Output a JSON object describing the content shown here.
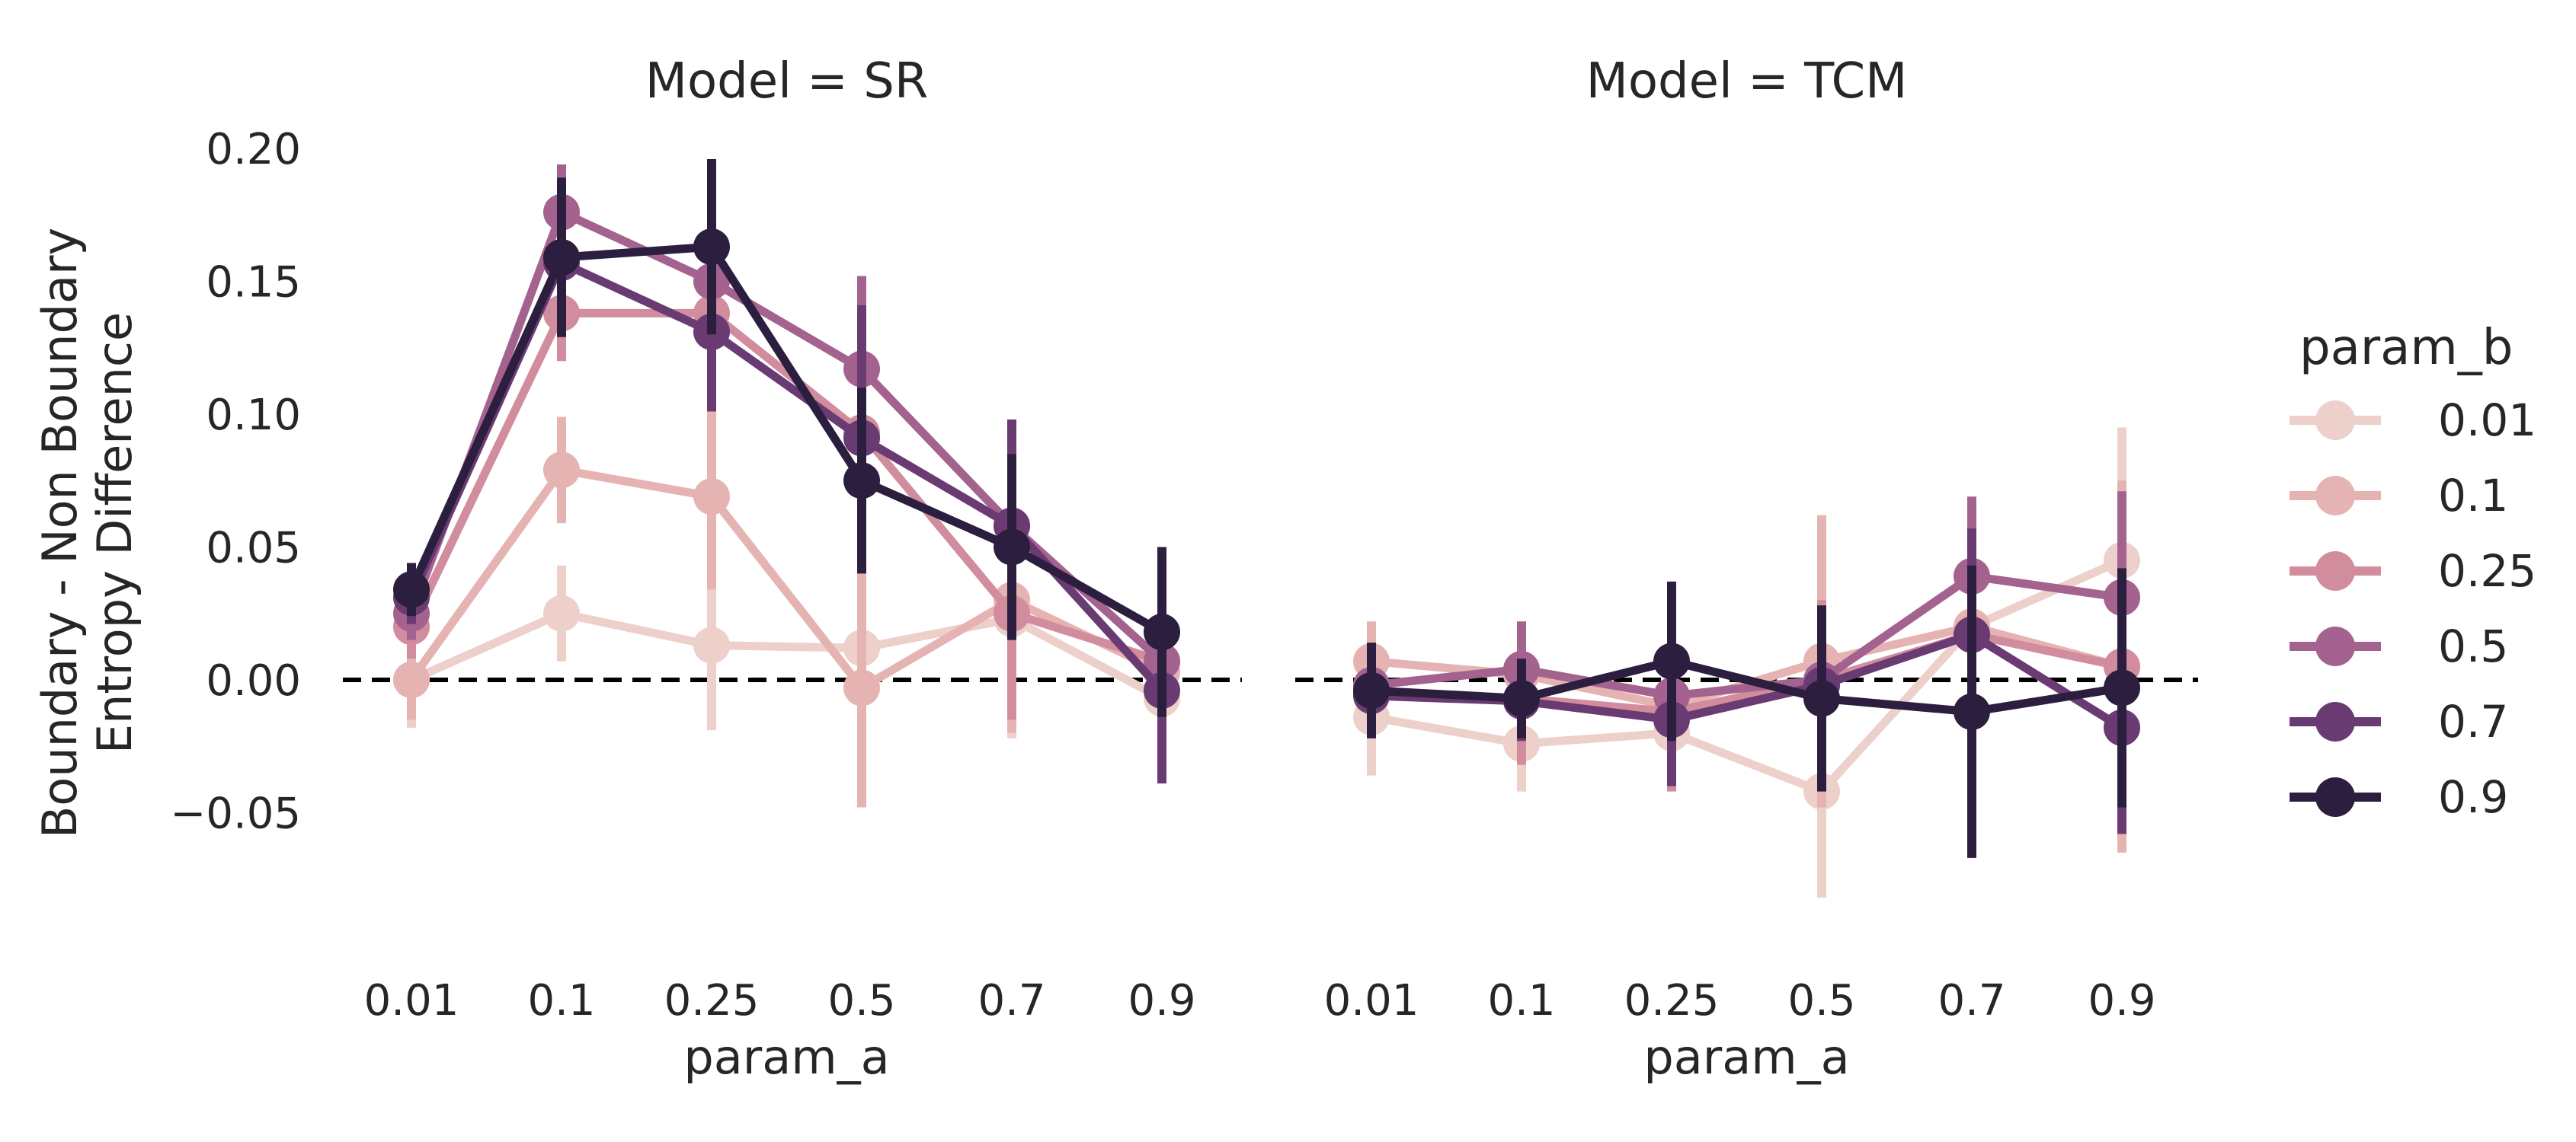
{
  "chart_data": {
    "type": "line",
    "ylabel_lines": [
      "Boundary - Non Boundary",
      "Entropy Difference"
    ],
    "xlabel": "param_a",
    "ylim": [
      -0.1,
      0.21
    ],
    "yticks": [
      -0.05,
      0.0,
      0.05,
      0.1,
      0.15,
      0.2
    ],
    "ytick_labels": [
      "−0.05",
      "0.00",
      "0.05",
      "0.10",
      "0.15",
      "0.20"
    ],
    "categories": [
      "0.01",
      "0.1",
      "0.25",
      "0.5",
      "0.7",
      "0.9"
    ],
    "reference_line": 0,
    "legend": {
      "title": "param_b",
      "placement": "right",
      "entries": [
        "0.01",
        "0.1",
        "0.25",
        "0.5",
        "0.7",
        "0.9"
      ]
    },
    "colors": [
      "#ecd0c9",
      "#e5b4b2",
      "#d18d9e",
      "#a4628f",
      "#6a3a73",
      "#2c1e3e"
    ],
    "panels": [
      {
        "title": "Model = SR",
        "series": [
          {
            "name": "0.01",
            "values": [
              0.0,
              0.025,
              0.013,
              0.012,
              0.023,
              -0.007
            ],
            "err": [
              0.018,
              0.018,
              0.032,
              0.045,
              0.045,
              0.01
            ]
          },
          {
            "name": "0.1",
            "values": [
              0.0,
              0.079,
              0.069,
              -0.003,
              0.03,
              0.003
            ],
            "err": [
              0.015,
              0.02,
              0.035,
              0.045,
              0.05,
              0.01
            ]
          },
          {
            "name": "0.25",
            "values": [
              0.02,
              0.138,
              0.138,
              0.093,
              0.025,
              0.007
            ],
            "err": [
              0.012,
              0.018,
              0.022,
              0.04,
              0.04,
              0.012
            ]
          },
          {
            "name": "0.5",
            "values": [
              0.025,
              0.176,
              0.15,
              0.117,
              0.058,
              0.007
            ],
            "err": [
              0.01,
              0.018,
              0.022,
              0.035,
              0.035,
              0.025
            ]
          },
          {
            "name": "0.7",
            "values": [
              0.031,
              0.157,
              0.131,
              0.091,
              0.058,
              -0.004
            ],
            "err": [
              0.01,
              0.018,
              0.03,
              0.05,
              0.04,
              0.035
            ]
          },
          {
            "name": "0.9",
            "values": [
              0.034,
              0.159,
              0.163,
              0.075,
              0.05,
              0.018
            ],
            "err": [
              0.01,
              0.03,
              0.033,
              0.035,
              0.035,
              0.032
            ]
          }
        ]
      },
      {
        "title": "Model = TCM",
        "series": [
          {
            "name": "0.01",
            "values": [
              -0.014,
              -0.024,
              -0.02,
              -0.042,
              0.02,
              0.045
            ],
            "err": [
              0.022,
              0.018,
              0.02,
              0.04,
              0.03,
              0.05
            ]
          },
          {
            "name": "0.1",
            "values": [
              0.007,
              0.002,
              -0.01,
              0.007,
              0.02,
              0.005
            ],
            "err": [
              0.015,
              0.018,
              0.03,
              0.055,
              0.03,
              0.07
            ]
          },
          {
            "name": "0.25",
            "values": [
              -0.004,
              -0.007,
              -0.012,
              0.0,
              0.017,
              0.005
            ],
            "err": [
              0.018,
              0.025,
              0.03,
              0.03,
              0.03,
              0.05
            ]
          },
          {
            "name": "0.5",
            "values": [
              -0.002,
              0.004,
              -0.006,
              0.0,
              0.039,
              0.031
            ],
            "err": [
              0.012,
              0.018,
              0.025,
              0.025,
              0.03,
              0.04
            ]
          },
          {
            "name": "0.7",
            "values": [
              -0.006,
              -0.008,
              -0.015,
              -0.002,
              0.017,
              -0.018
            ],
            "err": [
              0.012,
              0.015,
              0.025,
              0.03,
              0.04,
              0.04
            ]
          },
          {
            "name": "0.9",
            "values": [
              -0.004,
              -0.007,
              0.007,
              -0.007,
              -0.012,
              -0.003
            ],
            "err": [
              0.018,
              0.015,
              0.03,
              0.035,
              0.055,
              0.045
            ]
          }
        ]
      }
    ]
  }
}
